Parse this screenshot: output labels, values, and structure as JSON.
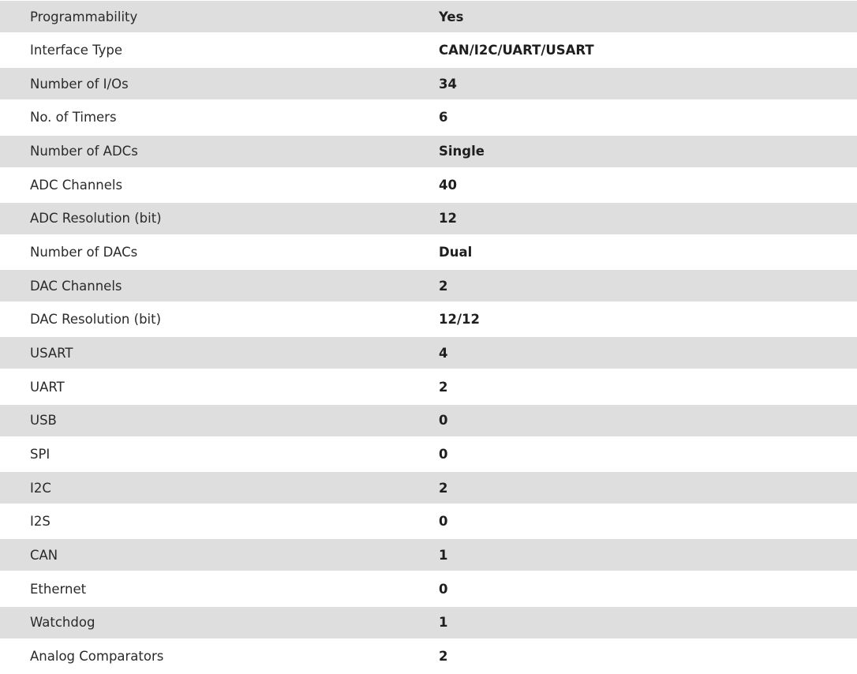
{
  "specs": [
    {
      "label": "Programmability",
      "value": "Yes"
    },
    {
      "label": "Interface Type",
      "value": "CAN/I2C/UART/USART"
    },
    {
      "label": "Number of I/Os",
      "value": "34"
    },
    {
      "label": "No. of Timers",
      "value": "6"
    },
    {
      "label": "Number of ADCs",
      "value": "Single"
    },
    {
      "label": "ADC Channels",
      "value": "40"
    },
    {
      "label": "ADC Resolution (bit)",
      "value": "12"
    },
    {
      "label": "Number of DACs",
      "value": "Dual"
    },
    {
      "label": "DAC Channels",
      "value": "2"
    },
    {
      "label": "DAC Resolution (bit)",
      "value": "12/12"
    },
    {
      "label": "USART",
      "value": "4"
    },
    {
      "label": "UART",
      "value": "2"
    },
    {
      "label": "USB",
      "value": "0"
    },
    {
      "label": "SPI",
      "value": "0"
    },
    {
      "label": "I2C",
      "value": "2"
    },
    {
      "label": "I2S",
      "value": "0"
    },
    {
      "label": "CAN",
      "value": "1"
    },
    {
      "label": "Ethernet",
      "value": "0"
    },
    {
      "label": "Watchdog",
      "value": "1"
    },
    {
      "label": "Analog Comparators",
      "value": "2"
    }
  ],
  "colors": {
    "stripe": "#dedede",
    "background": "#ffffff",
    "text": "#222222"
  }
}
